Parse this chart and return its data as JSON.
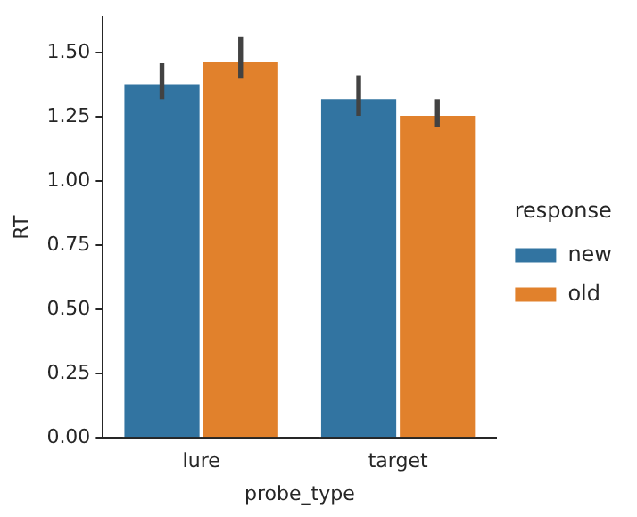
{
  "chart_data": {
    "type": "bar",
    "xlabel": "probe_type",
    "ylabel": "RT",
    "legend_title": "response",
    "categories": [
      "lure",
      "target"
    ],
    "series": [
      {
        "name": "new",
        "color": "#3274a1",
        "values": [
          1.385,
          1.327
        ],
        "errors": [
          [
            1.32,
            1.46
          ],
          [
            1.255,
            1.413
          ]
        ]
      },
      {
        "name": "old",
        "color": "#e1812c",
        "values": [
          1.471,
          1.262
        ],
        "errors": [
          [
            1.4,
            1.565
          ],
          [
            1.212,
            1.32
          ]
        ]
      }
    ],
    "ylim": [
      0,
      1.64
    ],
    "yticks": [
      {
        "value": 0,
        "label": "0.00"
      },
      {
        "value": 0.25,
        "label": "0.25"
      },
      {
        "value": 0.5,
        "label": "0.50"
      },
      {
        "value": 0.75,
        "label": "0.75"
      },
      {
        "value": 1,
        "label": "1.00"
      },
      {
        "value": 1.25,
        "label": "1.25"
      },
      {
        "value": 1.5,
        "label": "1.50"
      }
    ],
    "grid": false,
    "legend": "right"
  }
}
